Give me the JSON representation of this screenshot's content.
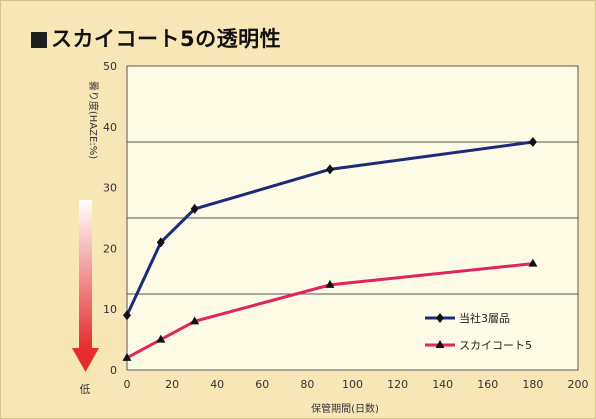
{
  "chart_data": {
    "type": "line",
    "title": "スカイコート5の透明性",
    "xlabel": "保管期間(日数)",
    "ylabel": "曇り度(HAZE:%)",
    "bottom_label": "低",
    "xlim": [
      0,
      200
    ],
    "ylim": [
      0,
      50
    ],
    "x_ticks": [
      0,
      20,
      40,
      60,
      80,
      100,
      120,
      140,
      160,
      180,
      200
    ],
    "y_ticks": [
      0,
      10,
      20,
      30,
      40,
      50
    ],
    "grid_y": [
      12.5,
      25,
      37.5
    ],
    "legend_position": "right",
    "series": [
      {
        "name": "当社3層品",
        "color": "#1c2a7a",
        "marker": "diamond",
        "x": [
          0,
          15,
          30,
          90,
          180
        ],
        "y": [
          9,
          21,
          26.5,
          33,
          37.5
        ]
      },
      {
        "name": "スカイコート5",
        "color": "#e0245e",
        "marker": "triangle",
        "x": [
          0,
          15,
          30,
          90,
          180
        ],
        "y": [
          2,
          5,
          8,
          14,
          17.5
        ]
      }
    ]
  },
  "colors": {
    "background": "#f7e6b6",
    "plot_bg": "#fdfae6",
    "arrow_top": "#ffffff",
    "arrow_bottom": "#e52d2d"
  }
}
